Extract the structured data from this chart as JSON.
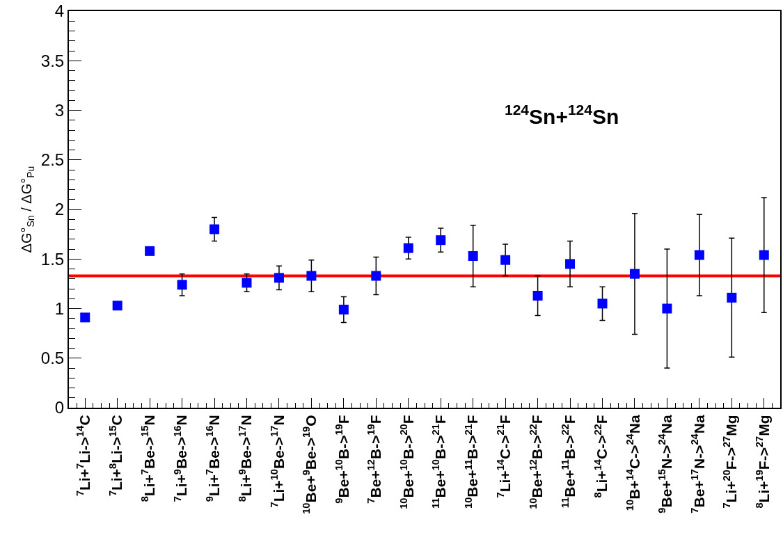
{
  "chart_data": {
    "type": "scatter",
    "ylabel": "ΔG°$_{Sn}$ / ΔG°$_{Pu}$",
    "annotations": [
      "$^{124}$Sn+$^{124}$Sn"
    ],
    "categories": [
      "$^{7}$Li+$^{7}$Li->$^{14}$C",
      "$^{7}$Li+$^{8}$Li->$^{15}$C",
      "$^{8}$Li+$^{7}$Be->$^{15}$N",
      "$^{7}$Li+$^{9}$Be->$^{16}$N",
      "$^{9}$Li+$^{7}$Be->$^{16}$N",
      "$^{8}$Li+$^{9}$Be->$^{17}$N",
      "$^{7}$Li+$^{10}$Be->$^{17}$N",
      "$^{10}$Be+$^{9}$Be->$^{19}$O",
      "$^{9}$Be+$^{10}$B->$^{19}$F",
      "$^{7}$Be+$^{12}$B->$^{19}$F",
      "$^{10}$Be+$^{10}$B->$^{20}$F",
      "$^{11}$Be+$^{10}$B->$^{21}$F",
      "$^{10}$Be+$^{11}$B->$^{21}$F",
      "$^{7}$Li+$^{14}$C->$^{21}$F",
      "$^{10}$Be+$^{12}$B->$^{22}$F",
      "$^{11}$Be+$^{11}$B->$^{22}$F",
      "$^{8}$Li+$^{14}$C->$^{22}$F",
      "$^{10}$B+$^{14}$C->$^{24}$Na",
      "$^{9}$Be+$^{15}$N->$^{24}$Na",
      "$^{7}$Be+$^{17}$N->$^{24}$Na",
      "$^{7}$Li+$^{20}$F->$^{27}$Mg",
      "$^{8}$Li+$^{19}$F->$^{27}$Mg"
    ],
    "series": [
      {
        "color": "#0000ff",
        "values": [
          0.91,
          1.03,
          1.58,
          1.24,
          1.8,
          1.26,
          1.31,
          1.33,
          0.99,
          1.33,
          1.61,
          1.69,
          1.53,
          1.49,
          1.13,
          1.45,
          1.05,
          1.35,
          1.0,
          1.54,
          1.11,
          1.54
        ],
        "errors": [
          null,
          null,
          null,
          0.11,
          0.12,
          0.09,
          0.12,
          0.16,
          0.13,
          0.19,
          0.11,
          0.12,
          0.31,
          0.16,
          0.2,
          0.23,
          0.17,
          0.61,
          0.6,
          0.41,
          0.6,
          0.58
        ]
      }
    ],
    "ylim": [
      0,
      4
    ],
    "yticks": [
      0,
      0.5,
      1,
      1.5,
      2,
      2.5,
      3,
      3.5,
      4
    ],
    "ref_lines": [
      {
        "axis": "y",
        "value": 1.33,
        "color": "#ff0000",
        "line_style": "solid"
      }
    ],
    "marker": "square",
    "grid": false
  }
}
